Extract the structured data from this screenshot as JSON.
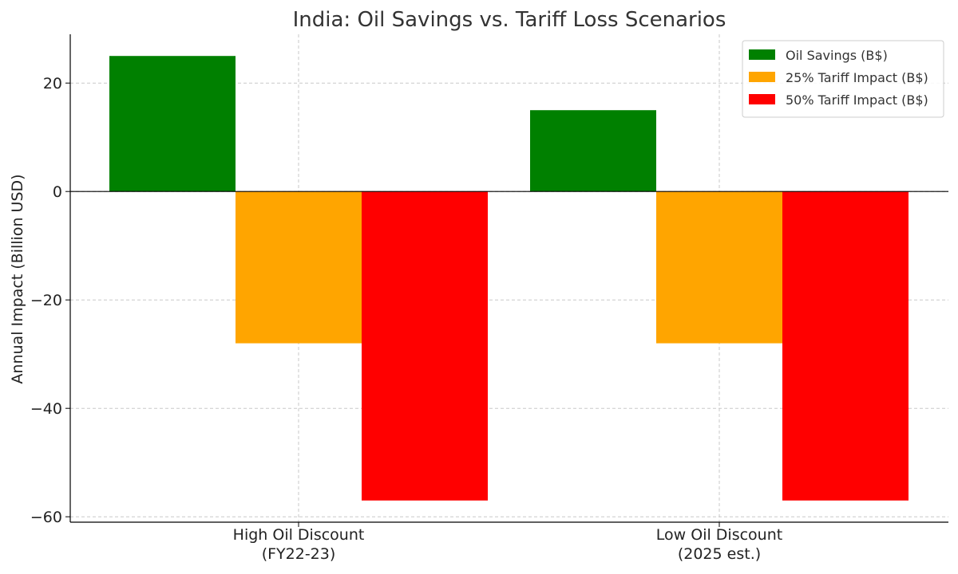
{
  "chart_data": {
    "type": "bar",
    "title": "India: Oil Savings vs. Tariff Loss Scenarios",
    "xlabel": "",
    "ylabel": "Annual Impact (Billion USD)",
    "categories": [
      [
        "High Oil Discount",
        "(FY22-23)"
      ],
      [
        "Low Oil Discount",
        "(2025 est.)"
      ]
    ],
    "series": [
      {
        "name": "Oil Savings (B$)",
        "color": "#008000",
        "values": [
          25,
          15
        ]
      },
      {
        "name": "25% Tariff Impact (B$)",
        "color": "#FFA500",
        "values": [
          -28,
          -28
        ]
      },
      {
        "name": "50% Tariff Impact (B$)",
        "color": "#FF0000",
        "values": [
          -57,
          -57
        ]
      }
    ],
    "ylim": [
      -61,
      29
    ],
    "yticks": [
      -60,
      -40,
      -20,
      0,
      20
    ],
    "ytick_labels": [
      "−60",
      "−40",
      "−20",
      "0",
      "20"
    ],
    "grid": true,
    "zero_line": true,
    "legend_position": "top-right"
  }
}
